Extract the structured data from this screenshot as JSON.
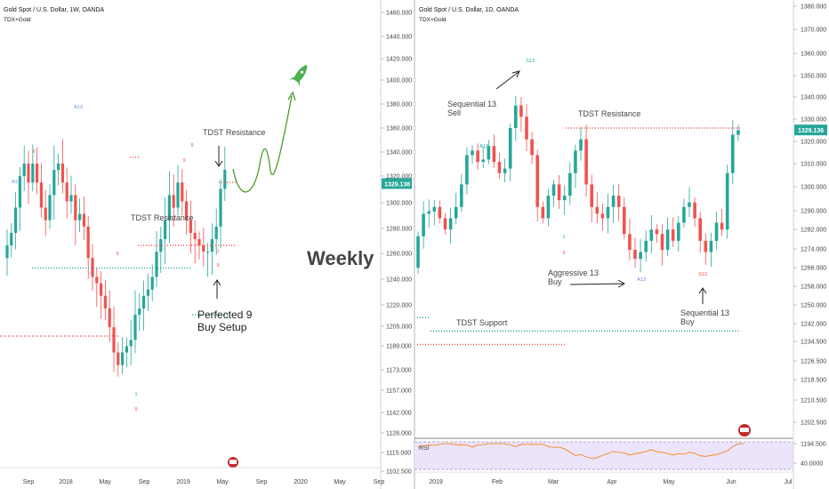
{
  "left": {
    "title": "Gold Spot / U.S. Dollar, 1W, OANDA",
    "indicator": "TDX+Gold",
    "price_label": "1329.136",
    "y_ticks": [
      "1460.000",
      "1440.000",
      "1420.000",
      "1400.000",
      "1380.000",
      "1360.000",
      "1340.000",
      "1320.000",
      "1300.000",
      "1280.000",
      "1260.000",
      "1240.000",
      "1220.000",
      "1205.000",
      "1189.000",
      "1173.000",
      "1157.000",
      "1142.000",
      "1128.000",
      "1115.000",
      "1102.500"
    ],
    "x_ticks": [
      "Sep",
      "2018",
      "May",
      "Sep",
      "2019",
      "May",
      "Sep",
      "2020",
      "May",
      "Sep"
    ],
    "annotations": {
      "tdst_resistance_1": "TDST Resistance",
      "tdst_resistance_2": "TDST Resistance",
      "perfected_line1": "Perfected 9",
      "perfected_line2": "Buy Setup",
      "weekly": "Weekly"
    },
    "td_labels": [
      "A13",
      "A13",
      "9",
      "9",
      "9",
      "1",
      "9",
      "9",
      "9",
      "1"
    ]
  },
  "right": {
    "title": "Gold Spot / U.S. Dollar, 1D, OANDA",
    "indicator": "TDX+Gold",
    "price_label": "1329.136",
    "y_ticks": [
      "1380.000",
      "1370.000",
      "1360.000",
      "1350.000",
      "1340.000",
      "1330.000",
      "1320.000",
      "1310.000",
      "1300.000",
      "1290.000",
      "1282.000",
      "1274.000",
      "1266.000",
      "1258.000",
      "1250.000",
      "1242.000",
      "1234.500",
      "1226.500",
      "1218.500",
      "1210.500",
      "1202.500",
      "1194.500",
      "40.0000"
    ],
    "x_ticks": [
      "2019",
      "Feb",
      "Mar",
      "Apr",
      "May",
      "Jun",
      "Jul"
    ],
    "rsi_label": "RSI",
    "annotations": {
      "seq13_sell_1": "Sequential 13",
      "seq13_sell_2": "Sell",
      "tdst_resistance": "TDST Resistance",
      "aggressive_1": "Aggressive 13",
      "aggressive_2": "Buy",
      "tdst_support": "TDST Support",
      "seq13_buy_1": "Sequential 13",
      "seq13_buy_2": "Buy"
    },
    "td_labels": [
      "S13",
      "A13",
      "9",
      "9",
      "1",
      "A13",
      "S13"
    ]
  },
  "colors": {
    "up": "#26a69a",
    "down": "#ef5350",
    "resistance": "#ef5350",
    "support": "#26a69a",
    "rocket": "#4caf50",
    "path": "#4a9e2a",
    "price_tag": "#26a69a",
    "rsi_bg": "#ece4fb",
    "rsi_line": "#f57c00",
    "td_blue": "#5b8fd9",
    "td_red": "#ef5350",
    "td_green": "#26a69a"
  },
  "chart_data": [
    {
      "type": "candlestick",
      "title": "Gold Spot / U.S. Dollar, 1W, OANDA",
      "ylim": [
        1100,
        1465
      ],
      "x_ticks": [
        "Sep",
        "2018",
        "May",
        "Sep",
        "2019",
        "May",
        "Sep",
        "2020",
        "May",
        "Sep"
      ],
      "approx_closes": [
        1280,
        1290,
        1310,
        1335,
        1345,
        1330,
        1345,
        1330,
        1310,
        1300,
        1320,
        1340,
        1345,
        1330,
        1315,
        1320,
        1300,
        1305,
        1295,
        1270,
        1255,
        1250,
        1240,
        1230,
        1215,
        1195,
        1185,
        1195,
        1200,
        1205,
        1225,
        1230,
        1240,
        1245,
        1255,
        1275,
        1285,
        1300,
        1320,
        1310,
        1330,
        1315,
        1300,
        1290,
        1285,
        1280,
        1275,
        1275,
        1285,
        1295,
        1325,
        1340
      ],
      "levels": [
        {
          "name": "TDST Resistance",
          "value": 1280
        },
        {
          "name": "TDST Resistance",
          "value": 1330
        },
        {
          "value": 1262
        },
        {
          "value": 1350
        },
        {
          "value": 1208
        }
      ]
    },
    {
      "type": "candlestick",
      "title": "Gold Spot / U.S. Dollar, 1D, OANDA",
      "ylim": [
        1194,
        1384
      ],
      "x_ticks": [
        "2019",
        "Feb",
        "Mar",
        "Apr",
        "May",
        "Jun",
        "Jul"
      ],
      "approx_closes": [
        1282,
        1292,
        1293,
        1295,
        1290,
        1285,
        1290,
        1295,
        1305,
        1318,
        1320,
        1315,
        1316,
        1322,
        1315,
        1310,
        1312,
        1330,
        1340,
        1335,
        1325,
        1318,
        1295,
        1290,
        1300,
        1305,
        1298,
        1300,
        1310,
        1320,
        1325,
        1305,
        1295,
        1292,
        1290,
        1295,
        1300,
        1295,
        1283,
        1276,
        1272,
        1275,
        1280,
        1285,
        1283,
        1276,
        1285,
        1280,
        1288,
        1295,
        1297,
        1290,
        1280,
        1275,
        1280,
        1288,
        1285,
        1310,
        1327,
        1329
      ],
      "levels": [
        {
          "name": "TDST Resistance",
          "value": 1330
        },
        {
          "name": "TDST Support",
          "value": 1240
        },
        {
          "value": 1234
        }
      ],
      "rsi_label": "RSI"
    }
  ]
}
